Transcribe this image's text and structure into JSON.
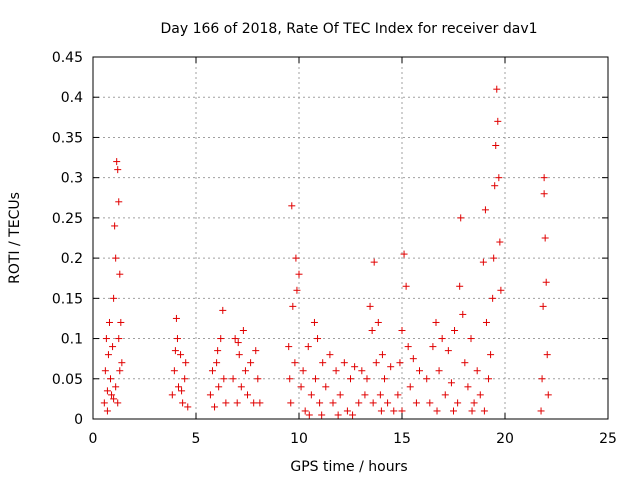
{
  "chart_data": {
    "type": "scatter",
    "title": "Day 166 of 2018, Rate Of TEC Index for receiver dav1",
    "xlabel": "GPS time / hours",
    "ylabel": "ROTI / TECUs",
    "xlim": [
      0,
      25
    ],
    "ylim": [
      0,
      0.45
    ],
    "xticks": [
      0,
      5,
      10,
      15,
      20,
      25
    ],
    "xtick_labels": [
      "0",
      "5",
      "10",
      "15",
      "20",
      "25"
    ],
    "yticks": [
      0,
      0.05,
      0.1,
      0.15,
      0.2,
      0.25,
      0.3,
      0.35,
      0.4,
      0.45
    ],
    "ytick_labels": [
      "0",
      "0.05",
      "0.1",
      "0.15",
      "0.2",
      "0.25",
      "0.3",
      "0.35",
      "0.4",
      "0.45"
    ],
    "grid": true,
    "marker": "+",
    "marker_color": "#e00000",
    "series": [
      {
        "name": "ROTI",
        "points": [
          [
            0.55,
            0.02
          ],
          [
            0.6,
            0.06
          ],
          [
            0.65,
            0.1
          ],
          [
            0.7,
            0.035
          ],
          [
            0.75,
            0.08
          ],
          [
            0.8,
            0.12
          ],
          [
            0.85,
            0.05
          ],
          [
            0.9,
            0.03
          ],
          [
            0.95,
            0.09
          ],
          [
            1.0,
            0.15
          ],
          [
            1.05,
            0.24
          ],
          [
            1.1,
            0.2
          ],
          [
            1.15,
            0.32
          ],
          [
            1.2,
            0.31
          ],
          [
            1.25,
            0.27
          ],
          [
            1.3,
            0.18
          ],
          [
            1.35,
            0.12
          ],
          [
            1.4,
            0.07
          ],
          [
            1.1,
            0.04
          ],
          [
            1.2,
            0.02
          ],
          [
            1.3,
            0.06
          ],
          [
            0.7,
            0.01
          ],
          [
            1.0,
            0.025
          ],
          [
            1.25,
            0.1
          ],
          [
            3.85,
            0.03
          ],
          [
            3.95,
            0.06
          ],
          [
            4.05,
            0.125
          ],
          [
            4.1,
            0.1
          ],
          [
            4.15,
            0.04
          ],
          [
            4.25,
            0.08
          ],
          [
            4.35,
            0.02
          ],
          [
            4.45,
            0.05
          ],
          [
            4.5,
            0.07
          ],
          [
            4.6,
            0.015
          ],
          [
            4.0,
            0.085
          ],
          [
            4.3,
            0.035
          ],
          [
            5.7,
            0.03
          ],
          [
            5.8,
            0.06
          ],
          [
            5.9,
            0.015
          ],
          [
            6.0,
            0.07
          ],
          [
            6.1,
            0.04
          ],
          [
            6.2,
            0.1
          ],
          [
            6.3,
            0.135
          ],
          [
            6.35,
            0.05
          ],
          [
            6.45,
            0.02
          ],
          [
            6.05,
            0.085
          ],
          [
            6.8,
            0.05
          ],
          [
            6.9,
            0.1
          ],
          [
            7.0,
            0.02
          ],
          [
            7.1,
            0.08
          ],
          [
            7.2,
            0.04
          ],
          [
            7.3,
            0.11
          ],
          [
            7.4,
            0.06
          ],
          [
            7.5,
            0.03
          ],
          [
            7.65,
            0.07
          ],
          [
            7.8,
            0.02
          ],
          [
            7.9,
            0.085
          ],
          [
            8.0,
            0.05
          ],
          [
            8.1,
            0.02
          ],
          [
            7.05,
            0.095
          ],
          [
            9.5,
            0.09
          ],
          [
            9.55,
            0.05
          ],
          [
            9.6,
            0.02
          ],
          [
            9.65,
            0.265
          ],
          [
            9.7,
            0.14
          ],
          [
            9.8,
            0.07
          ],
          [
            9.85,
            0.2
          ],
          [
            9.9,
            0.16
          ],
          [
            10.0,
            0.18
          ],
          [
            10.1,
            0.04
          ],
          [
            10.2,
            0.06
          ],
          [
            10.3,
            0.01
          ],
          [
            10.45,
            0.09
          ],
          [
            10.6,
            0.03
          ],
          [
            10.75,
            0.12
          ],
          [
            10.8,
            0.05
          ],
          [
            10.9,
            0.1
          ],
          [
            11.0,
            0.02
          ],
          [
            11.15,
            0.07
          ],
          [
            11.3,
            0.04
          ],
          [
            11.5,
            0.08
          ],
          [
            11.65,
            0.02
          ],
          [
            11.8,
            0.06
          ],
          [
            12.0,
            0.03
          ],
          [
            12.2,
            0.07
          ],
          [
            12.35,
            0.01
          ],
          [
            12.5,
            0.05
          ],
          [
            12.7,
            0.065
          ],
          [
            12.9,
            0.02
          ],
          [
            13.05,
            0.06
          ],
          [
            13.2,
            0.03
          ],
          [
            10.5,
            0.005
          ],
          [
            11.1,
            0.005
          ],
          [
            11.9,
            0.005
          ],
          [
            12.6,
            0.005
          ],
          [
            13.3,
            0.05
          ],
          [
            13.45,
            0.14
          ],
          [
            13.55,
            0.11
          ],
          [
            13.65,
            0.195
          ],
          [
            13.75,
            0.07
          ],
          [
            13.85,
            0.12
          ],
          [
            13.95,
            0.03
          ],
          [
            14.05,
            0.08
          ],
          [
            14.15,
            0.05
          ],
          [
            14.3,
            0.02
          ],
          [
            14.45,
            0.065
          ],
          [
            14.6,
            0.01
          ],
          [
            13.6,
            0.02
          ],
          [
            14.0,
            0.01
          ],
          [
            14.8,
            0.03
          ],
          [
            14.9,
            0.07
          ],
          [
            15.0,
            0.11
          ],
          [
            15.1,
            0.205
          ],
          [
            15.2,
            0.165
          ],
          [
            15.3,
            0.09
          ],
          [
            15.4,
            0.04
          ],
          [
            15.55,
            0.075
          ],
          [
            15.7,
            0.02
          ],
          [
            15.85,
            0.06
          ],
          [
            15.0,
            0.01
          ],
          [
            16.2,
            0.05
          ],
          [
            16.35,
            0.02
          ],
          [
            16.5,
            0.09
          ],
          [
            16.65,
            0.12
          ],
          [
            16.8,
            0.06
          ],
          [
            16.95,
            0.1
          ],
          [
            17.1,
            0.03
          ],
          [
            17.25,
            0.085
          ],
          [
            17.4,
            0.045
          ],
          [
            17.55,
            0.11
          ],
          [
            17.7,
            0.02
          ],
          [
            17.8,
            0.165
          ],
          [
            17.85,
            0.25
          ],
          [
            17.95,
            0.13
          ],
          [
            18.05,
            0.07
          ],
          [
            18.2,
            0.04
          ],
          [
            18.35,
            0.1
          ],
          [
            18.5,
            0.02
          ],
          [
            18.65,
            0.06
          ],
          [
            18.8,
            0.03
          ],
          [
            18.95,
            0.195
          ],
          [
            19.05,
            0.26
          ],
          [
            19.1,
            0.12
          ],
          [
            19.2,
            0.05
          ],
          [
            19.3,
            0.08
          ],
          [
            19.4,
            0.15
          ],
          [
            19.45,
            0.2
          ],
          [
            19.5,
            0.29
          ],
          [
            19.55,
            0.34
          ],
          [
            19.6,
            0.41
          ],
          [
            19.65,
            0.37
          ],
          [
            19.7,
            0.3
          ],
          [
            19.75,
            0.22
          ],
          [
            19.8,
            0.16
          ],
          [
            16.7,
            0.01
          ],
          [
            17.5,
            0.01
          ],
          [
            18.4,
            0.01
          ],
          [
            19.0,
            0.01
          ],
          [
            21.75,
            0.01
          ],
          [
            21.8,
            0.05
          ],
          [
            21.85,
            0.14
          ],
          [
            21.9,
            0.3
          ],
          [
            21.95,
            0.225
          ],
          [
            22.0,
            0.17
          ],
          [
            22.05,
            0.08
          ],
          [
            22.1,
            0.03
          ],
          [
            21.9,
            0.28
          ]
        ]
      }
    ]
  }
}
